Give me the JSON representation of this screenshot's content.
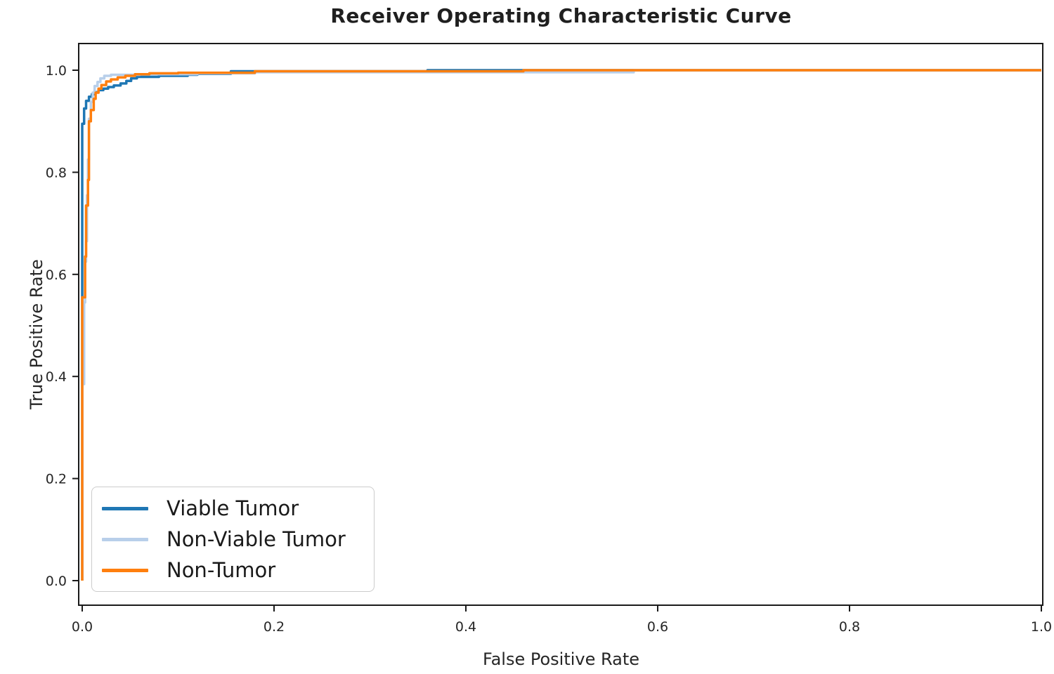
{
  "chart_data": {
    "type": "line",
    "subtype": "roc-step-curves",
    "title": "Receiver Operating Characteristic Curve",
    "xlabel": "False Positive Rate",
    "ylabel": "True Positive Rate",
    "xlim": [
      0.0,
      1.0
    ],
    "ylim": [
      0.0,
      1.0
    ],
    "grid": false,
    "legend_position": "lower left",
    "xticks": [
      0.0,
      0.2,
      0.4,
      0.6,
      0.8,
      1.0
    ],
    "xtick_labels": [
      "0.0",
      "0.2",
      "0.4",
      "0.6",
      "0.8",
      "1.0"
    ],
    "yticks": [
      0.0,
      0.2,
      0.4,
      0.6,
      0.8,
      1.0
    ],
    "ytick_labels": [
      "0.0",
      "0.2",
      "0.4",
      "0.6",
      "0.8",
      "1.0"
    ],
    "colors": {
      "spine": "#1a1a1a",
      "tick_label": "#262626",
      "title_text": "#1f1f1f",
      "legend_border": "#cccccc"
    },
    "series": [
      {
        "name": "Viable Tumor",
        "color": "#1f77b4",
        "points": [
          [
            0,
            0
          ],
          [
            0,
            0.895
          ],
          [
            0.002,
            0.895
          ],
          [
            0.002,
            0.925
          ],
          [
            0.004,
            0.925
          ],
          [
            0.004,
            0.94
          ],
          [
            0.007,
            0.94
          ],
          [
            0.007,
            0.948
          ],
          [
            0.01,
            0.948
          ],
          [
            0.01,
            0.953
          ],
          [
            0.013,
            0.953
          ],
          [
            0.013,
            0.957
          ],
          [
            0.017,
            0.957
          ],
          [
            0.017,
            0.961
          ],
          [
            0.022,
            0.961
          ],
          [
            0.022,
            0.964
          ],
          [
            0.027,
            0.964
          ],
          [
            0.027,
            0.967
          ],
          [
            0.033,
            0.967
          ],
          [
            0.033,
            0.97
          ],
          [
            0.04,
            0.97
          ],
          [
            0.04,
            0.974
          ],
          [
            0.046,
            0.974
          ],
          [
            0.046,
            0.979
          ],
          [
            0.051,
            0.979
          ],
          [
            0.051,
            0.984
          ],
          [
            0.057,
            0.984
          ],
          [
            0.057,
            0.987
          ],
          [
            0.08,
            0.987
          ],
          [
            0.08,
            0.989
          ],
          [
            0.11,
            0.989
          ],
          [
            0.11,
            0.991
          ],
          [
            0.12,
            0.991
          ],
          [
            0.12,
            0.993
          ],
          [
            0.155,
            0.993
          ],
          [
            0.155,
            0.998
          ],
          [
            0.36,
            0.998
          ],
          [
            0.36,
            1.0
          ],
          [
            1.0,
            1.0
          ]
        ]
      },
      {
        "name": "Non-Viable Tumor",
        "color": "#b8cfea",
        "points": [
          [
            0,
            0
          ],
          [
            0,
            0.385
          ],
          [
            0.002,
            0.385
          ],
          [
            0.002,
            0.545
          ],
          [
            0.003,
            0.545
          ],
          [
            0.003,
            0.625
          ],
          [
            0.004,
            0.625
          ],
          [
            0.004,
            0.665
          ],
          [
            0.005,
            0.665
          ],
          [
            0.005,
            0.755
          ],
          [
            0.006,
            0.755
          ],
          [
            0.006,
            0.825
          ],
          [
            0.007,
            0.825
          ],
          [
            0.007,
            0.905
          ],
          [
            0.009,
            0.905
          ],
          [
            0.009,
            0.938
          ],
          [
            0.011,
            0.938
          ],
          [
            0.011,
            0.956
          ],
          [
            0.013,
            0.956
          ],
          [
            0.013,
            0.969
          ],
          [
            0.016,
            0.969
          ],
          [
            0.016,
            0.977
          ],
          [
            0.019,
            0.977
          ],
          [
            0.019,
            0.984
          ],
          [
            0.023,
            0.984
          ],
          [
            0.023,
            0.989
          ],
          [
            0.03,
            0.989
          ],
          [
            0.03,
            0.991
          ],
          [
            0.06,
            0.991
          ],
          [
            0.06,
            0.992
          ],
          [
            0.12,
            0.992
          ],
          [
            0.12,
            0.994
          ],
          [
            0.18,
            0.994
          ],
          [
            0.18,
            0.996
          ],
          [
            0.575,
            0.996
          ],
          [
            0.575,
            1.0
          ],
          [
            1.0,
            1.0
          ]
        ]
      },
      {
        "name": "Non-Tumor",
        "color": "#ff7f0e",
        "points": [
          [
            0,
            0
          ],
          [
            0,
            0.555
          ],
          [
            0.003,
            0.555
          ],
          [
            0.003,
            0.635
          ],
          [
            0.004,
            0.635
          ],
          [
            0.004,
            0.735
          ],
          [
            0.006,
            0.735
          ],
          [
            0.006,
            0.785
          ],
          [
            0.007,
            0.785
          ],
          [
            0.007,
            0.9
          ],
          [
            0.009,
            0.9
          ],
          [
            0.009,
            0.922
          ],
          [
            0.012,
            0.922
          ],
          [
            0.012,
            0.944
          ],
          [
            0.014,
            0.944
          ],
          [
            0.014,
            0.956
          ],
          [
            0.017,
            0.956
          ],
          [
            0.017,
            0.964
          ],
          [
            0.02,
            0.964
          ],
          [
            0.02,
            0.971
          ],
          [
            0.025,
            0.971
          ],
          [
            0.025,
            0.978
          ],
          [
            0.03,
            0.978
          ],
          [
            0.03,
            0.982
          ],
          [
            0.037,
            0.982
          ],
          [
            0.037,
            0.986
          ],
          [
            0.045,
            0.986
          ],
          [
            0.045,
            0.989
          ],
          [
            0.055,
            0.989
          ],
          [
            0.055,
            0.992
          ],
          [
            0.07,
            0.992
          ],
          [
            0.07,
            0.994
          ],
          [
            0.1,
            0.994
          ],
          [
            0.1,
            0.995
          ],
          [
            0.18,
            0.995
          ],
          [
            0.18,
            0.998
          ],
          [
            0.46,
            0.998
          ],
          [
            0.46,
            1.0
          ],
          [
            1.0,
            1.0
          ]
        ]
      }
    ]
  }
}
